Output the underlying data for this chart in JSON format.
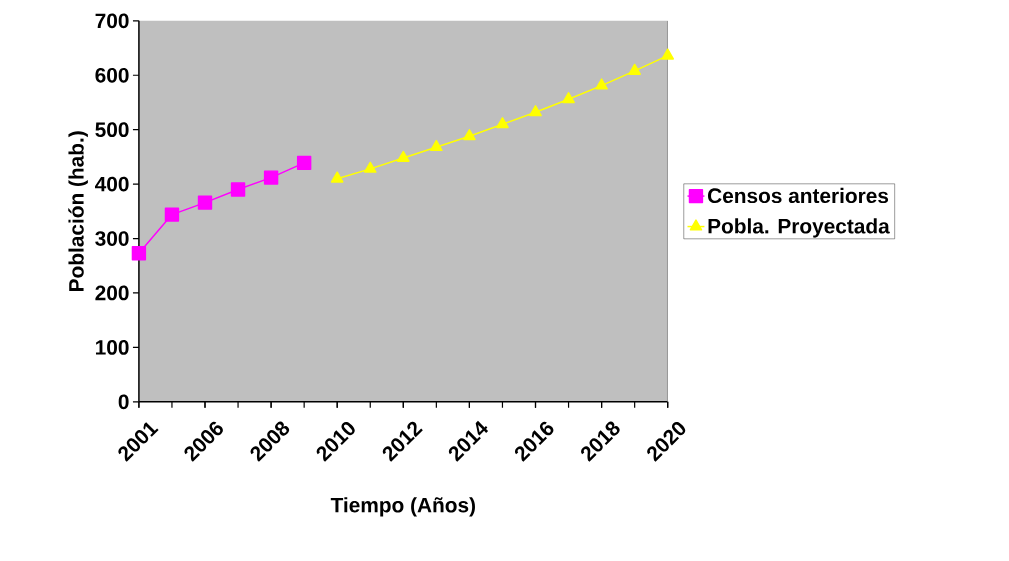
{
  "chart_data": {
    "type": "line",
    "xlabel": "Tiempo (Años)",
    "ylabel": "Población (hab.)",
    "categories": [
      "2001",
      null,
      "2006",
      null,
      "2008",
      null,
      "2010",
      null,
      "2012",
      null,
      "2014",
      null,
      "2016",
      null,
      "2018",
      null,
      "2020"
    ],
    "series": [
      {
        "name": "Censos anteriores",
        "color": "#ff00ff",
        "marker": "square",
        "values": [
          273,
          344,
          366,
          390,
          412,
          439,
          null,
          null,
          null,
          null,
          null,
          null,
          null,
          null,
          null,
          null,
          null
        ]
      },
      {
        "name": "Pobla. Proyectada",
        "color": "#ffff00",
        "marker": "triangle",
        "values": [
          null,
          null,
          null,
          null,
          null,
          null,
          410,
          428,
          448,
          468,
          488,
          510,
          532,
          556,
          581,
          608,
          636
        ]
      }
    ],
    "ylim": [
      0,
      700
    ],
    "yticks": [
      0,
      100,
      200,
      300,
      400,
      500,
      600,
      700
    ],
    "legend": "right",
    "grid": false
  }
}
